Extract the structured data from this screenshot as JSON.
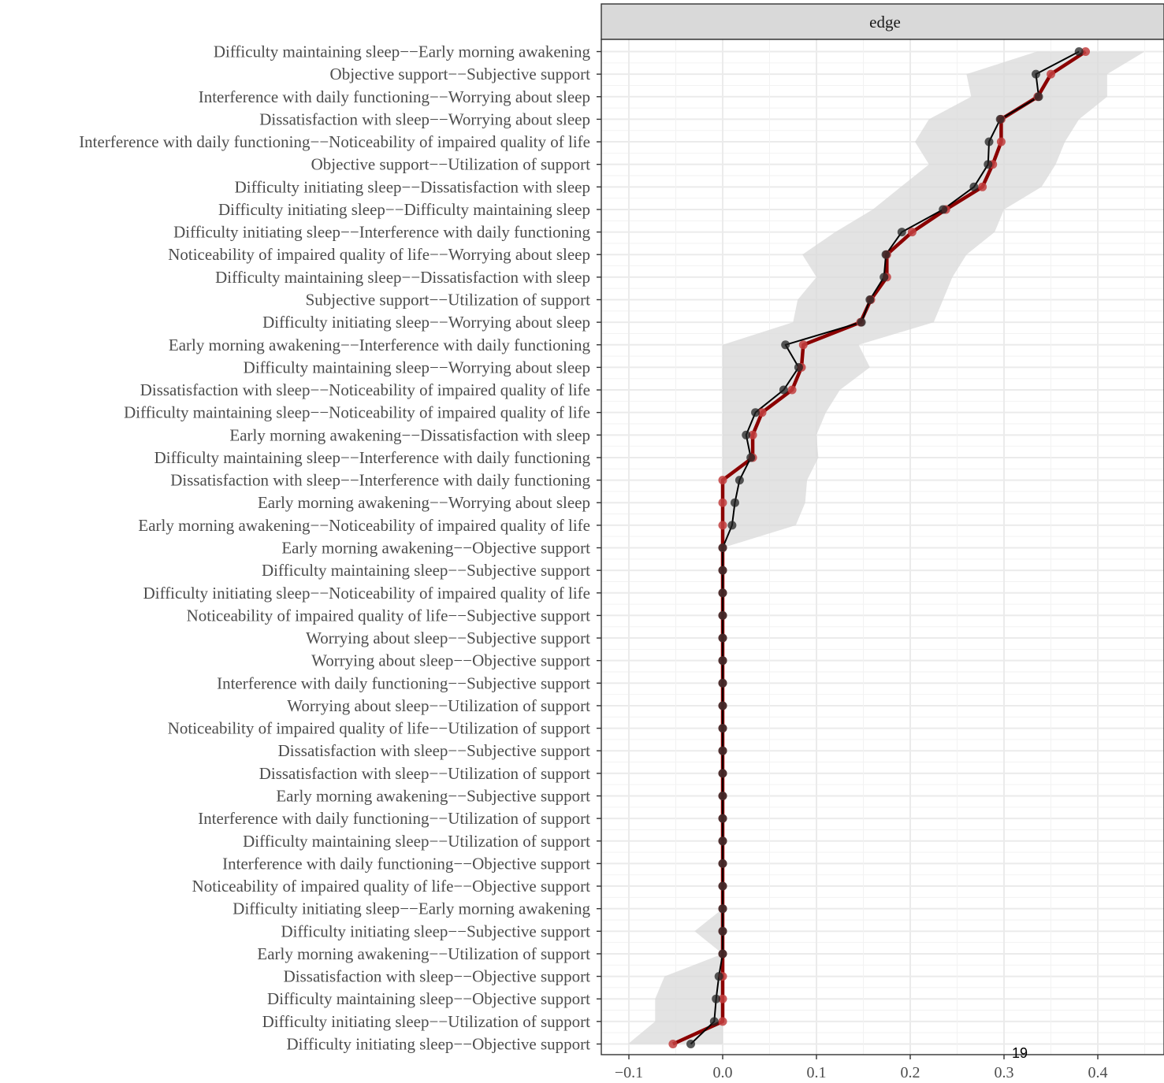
{
  "page": {
    "number": "19"
  },
  "chart_data": {
    "type": "line",
    "facet": "edge",
    "title": "",
    "xlabel": "",
    "ylabel": "",
    "xlim": [
      -0.14,
      0.47
    ],
    "xticks": [
      -0.1,
      0.0,
      0.1,
      0.2,
      0.3,
      0.4
    ],
    "xtick_labels": [
      "−0.1",
      "0.0",
      "0.1",
      "0.2",
      "0.3",
      "0.4"
    ],
    "grid": true,
    "legend": "none",
    "colors": {
      "sample": "#000000",
      "bootstrap_mean": "#8b0000",
      "ci_band": "#d9d9d9",
      "strip": "#d9d9d9"
    },
    "categories": [
      "Difficulty maintaining sleep−−Early morning awakening",
      "Objective support−−Subjective support",
      "Interference with daily functioning−−Worrying about sleep",
      "Dissatisfaction with sleep−−Worrying about sleep",
      "Interference with daily functioning−−Noticeability of impaired quality of life",
      "Objective support−−Utilization of support",
      "Difficulty initiating sleep−−Dissatisfaction with sleep",
      "Difficulty initiating sleep−−Difficulty maintaining sleep",
      "Difficulty initiating sleep−−Interference with daily functioning",
      "Noticeability of impaired quality of life−−Worrying about sleep",
      "Difficulty maintaining sleep−−Dissatisfaction with sleep",
      "Subjective support−−Utilization of support",
      "Difficulty initiating sleep−−Worrying about sleep",
      "Early morning awakening−−Interference with daily functioning",
      "Difficulty maintaining sleep−−Worrying about sleep",
      "Dissatisfaction with sleep−−Noticeability of impaired quality of life",
      "Difficulty maintaining sleep−−Noticeability of impaired quality of life",
      "Early morning awakening−−Dissatisfaction with sleep",
      "Difficulty maintaining sleep−−Interference with daily functioning",
      "Dissatisfaction with sleep−−Interference with daily functioning",
      "Early morning awakening−−Worrying about sleep",
      "Early morning awakening−−Noticeability of impaired quality of life",
      "Early morning awakening−−Objective support",
      "Difficulty maintaining sleep−−Subjective support",
      "Difficulty initiating sleep−−Noticeability of impaired quality of life",
      "Noticeability of impaired quality of life−−Subjective support",
      "Worrying about sleep−−Subjective support",
      "Worrying about sleep−−Objective support",
      "Interference with daily functioning−−Subjective support",
      "Worrying about sleep−−Utilization of support",
      "Noticeability of impaired quality of life−−Utilization of support",
      "Dissatisfaction with sleep−−Subjective support",
      "Dissatisfaction with sleep−−Utilization of support",
      "Early morning awakening−−Subjective support",
      "Interference with daily functioning−−Utilization of support",
      "Difficulty maintaining sleep−−Utilization of support",
      "Interference with daily functioning−−Objective support",
      "Noticeability of impaired quality of life−−Objective support",
      "Difficulty initiating sleep−−Early morning awakening",
      "Difficulty initiating sleep−−Subjective support",
      "Early morning awakening−−Utilization of support",
      "Dissatisfaction with sleep−−Objective support",
      "Difficulty maintaining sleep−−Objective support",
      "Difficulty initiating sleep−−Utilization of support",
      "Difficulty initiating sleep−−Objective support"
    ],
    "series": [
      {
        "role": "sample",
        "values": [
          0.38,
          0.334,
          0.337,
          0.296,
          0.284,
          0.283,
          0.268,
          0.235,
          0.191,
          0.174,
          0.172,
          0.157,
          0.148,
          0.067,
          0.081,
          0.065,
          0.035,
          0.025,
          0.03,
          0.018,
          0.013,
          0.01,
          0.0,
          0.0,
          0.0,
          0.0,
          0.0,
          0.0,
          0.0,
          0.0,
          0.0,
          0.0,
          0.0,
          0.0,
          0.0,
          0.0,
          0.0,
          0.0,
          0.0,
          0.0,
          0.0,
          -0.004,
          -0.007,
          -0.009,
          -0.034
        ]
      },
      {
        "role": "bootstrap_mean",
        "values": [
          0.387,
          0.35,
          0.336,
          0.297,
          0.297,
          0.288,
          0.277,
          0.238,
          0.202,
          0.175,
          0.175,
          0.158,
          0.147,
          0.086,
          0.084,
          0.074,
          0.042,
          0.032,
          0.032,
          0.0,
          0.0,
          0.0,
          0.0,
          0.0,
          0.0,
          0.0,
          0.0,
          0.0,
          0.0,
          0.0,
          0.0,
          0.0,
          0.0,
          0.0,
          0.0,
          0.0,
          0.0,
          0.0,
          0.0,
          0.0,
          0.0,
          0.0,
          0.0,
          0.0,
          -0.053
        ]
      }
    ],
    "ci_lower": [
      0.335,
      0.26,
      0.265,
      0.22,
      0.205,
      0.22,
      0.19,
      0.16,
      0.12,
      0.085,
      0.1,
      0.08,
      0.075,
      0.0,
      0.0,
      0.0,
      0.0,
      0.0,
      0.0,
      0.0,
      0.0,
      0.0,
      0.0,
      0.0,
      0.0,
      0.0,
      0.0,
      0.0,
      0.0,
      0.0,
      0.0,
      0.0,
      0.0,
      0.0,
      0.0,
      0.0,
      0.0,
      0.0,
      0.0,
      -0.03,
      0.0,
      -0.062,
      -0.072,
      -0.072,
      -0.101
    ],
    "ci_upper": [
      0.45,
      0.41,
      0.41,
      0.38,
      0.365,
      0.355,
      0.34,
      0.3,
      0.29,
      0.26,
      0.245,
      0.235,
      0.225,
      0.145,
      0.157,
      0.125,
      0.11,
      0.1,
      0.102,
      0.09,
      0.088,
      0.078,
      0.0,
      0.0,
      0.0,
      0.0,
      0.0,
      0.0,
      0.0,
      0.0,
      0.0,
      0.0,
      0.0,
      0.0,
      0.0,
      0.0,
      0.0,
      0.0,
      0.0,
      0.0,
      0.0,
      0.0,
      0.0,
      0.0,
      0.0
    ]
  }
}
